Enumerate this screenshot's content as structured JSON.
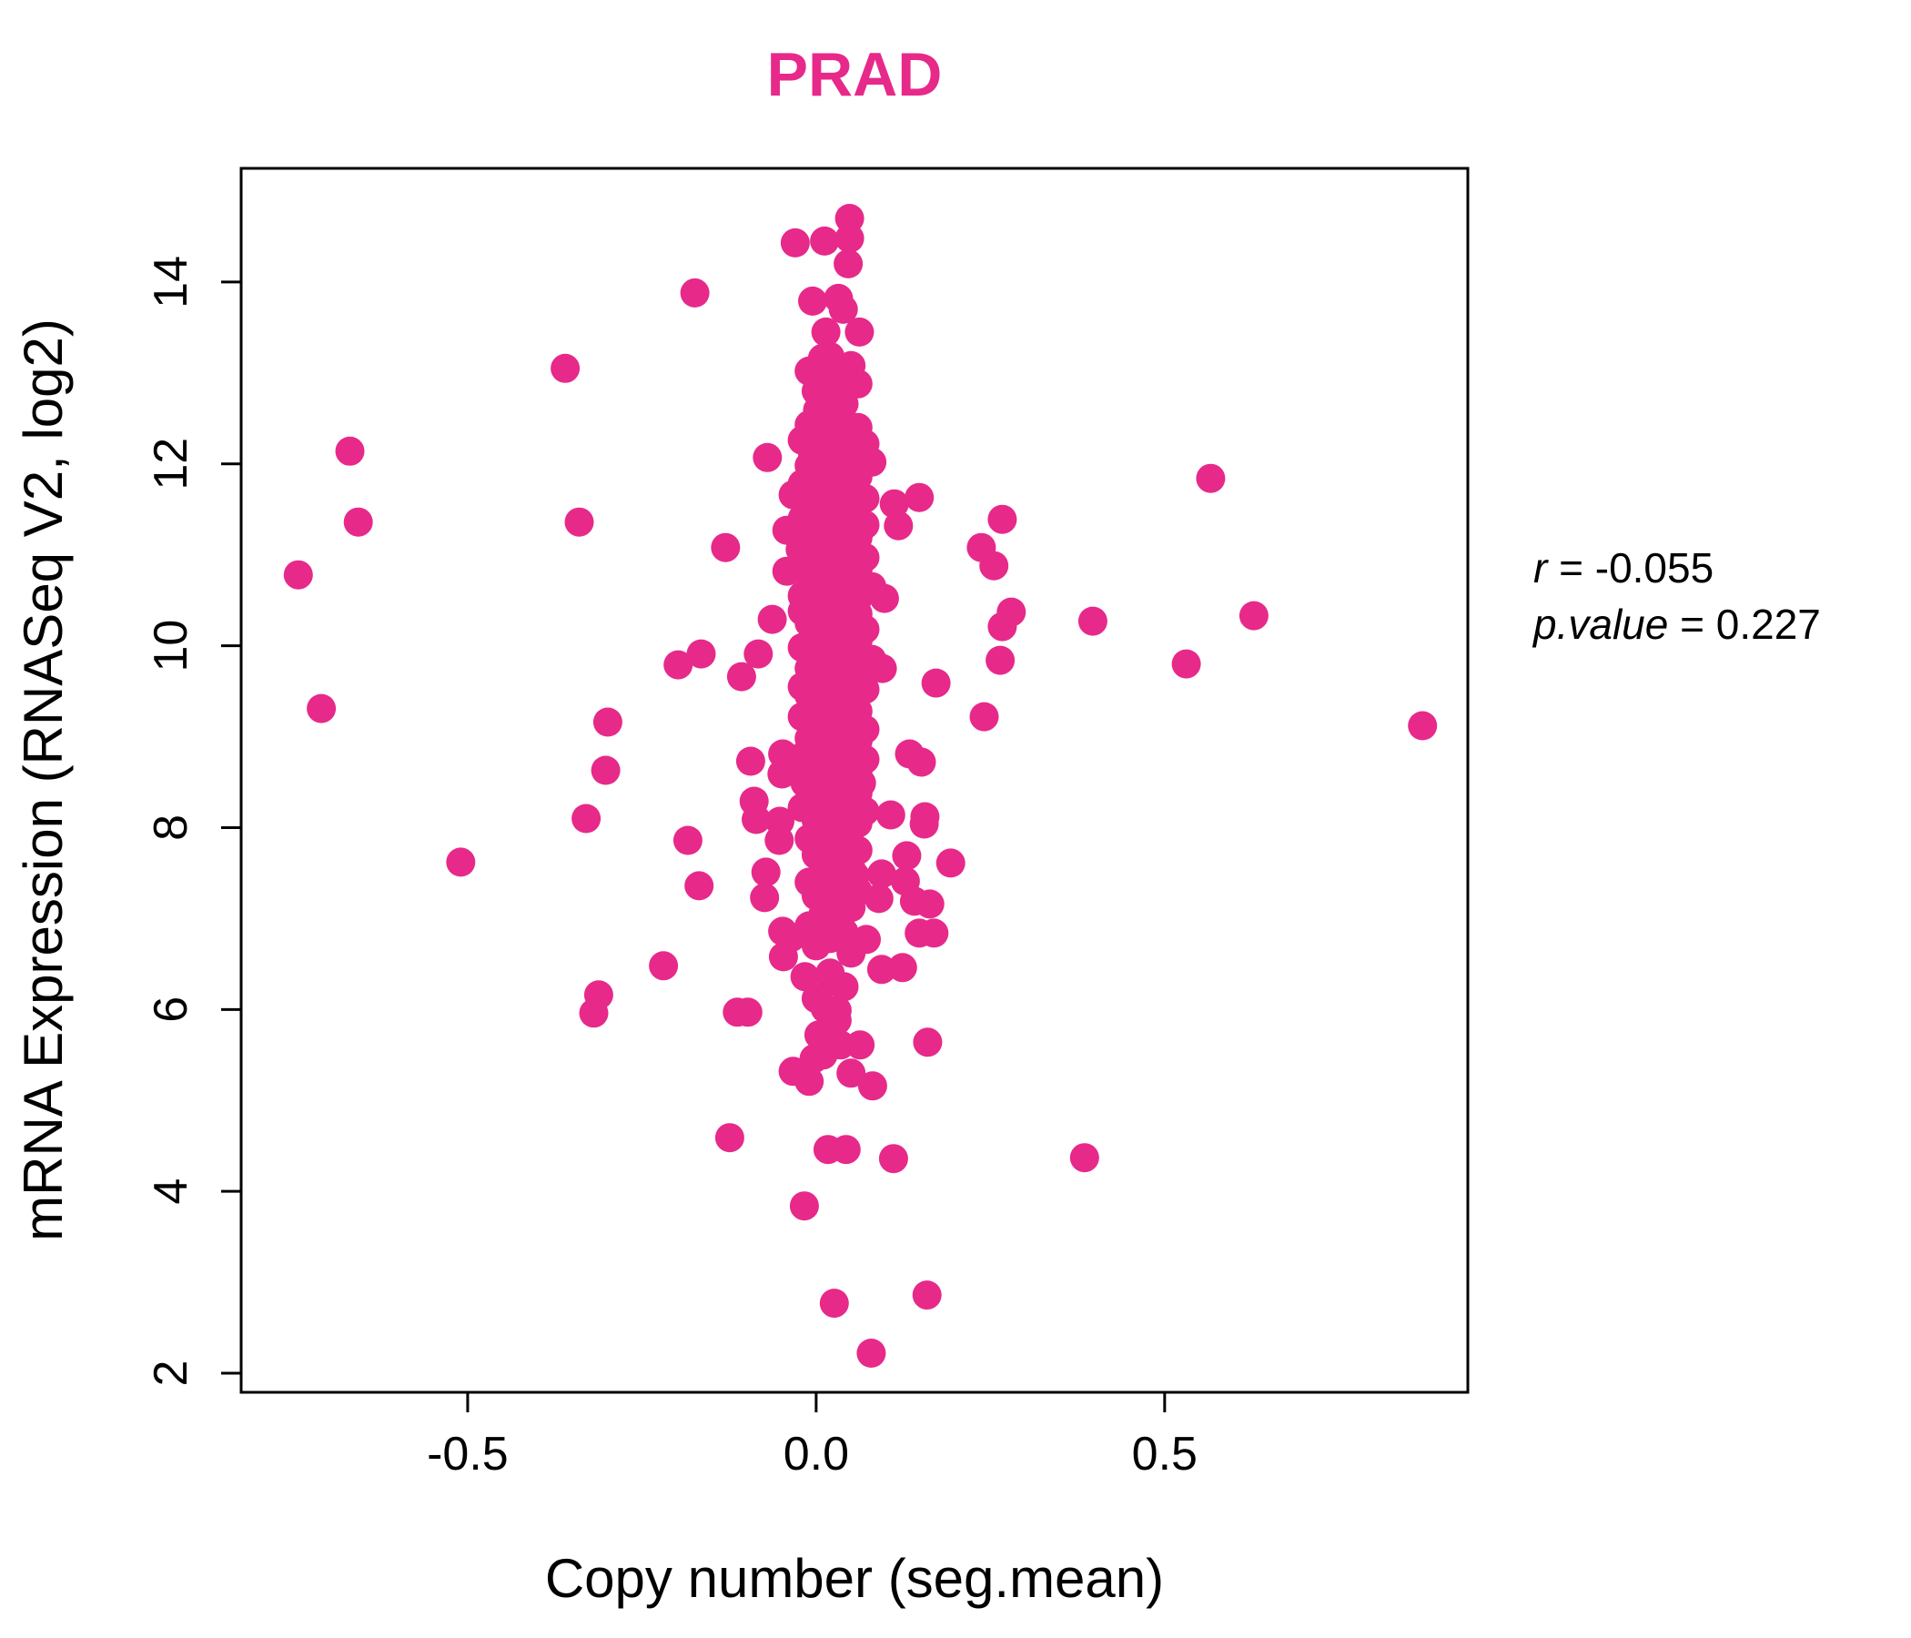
{
  "title": "PRAD",
  "colors": {
    "accent": "#E7298A",
    "point": "#E7298A",
    "axis": "#000000"
  },
  "axes": {
    "xlabel": "Copy number (seg.mean)",
    "ylabel": "mRNA Expression (RNASeq V2, log2)"
  },
  "annotation": {
    "r_label": "r",
    "r_value": " = -0.055",
    "p_label": "p.value",
    "p_value": " = 0.227"
  },
  "chart_data": {
    "type": "scatter",
    "title": "PRAD",
    "xlabel": "Copy number (seg.mean)",
    "ylabel": "mRNA Expression (RNASeq V2, log2)",
    "x_ticks": [
      -0.5,
      0.0,
      0.5
    ],
    "x_tick_labels": [
      "-0.5",
      "0.0",
      "0.5"
    ],
    "y_ticks": [
      2,
      4,
      6,
      8,
      10,
      12,
      14
    ],
    "y_tick_labels": [
      "2",
      "4",
      "6",
      "8",
      "10",
      "12",
      "14"
    ],
    "xlim": [
      -0.825,
      0.935
    ],
    "ylim": [
      1.79,
      15.25
    ],
    "grid": false,
    "legend": "none",
    "stats": {
      "r": -0.055,
      "p_value": 0.227
    },
    "points": [
      [
        -0.743,
        10.78
      ],
      [
        -0.71,
        9.31
      ],
      [
        -0.669,
        12.14
      ],
      [
        -0.657,
        11.36
      ],
      [
        -0.51,
        7.62
      ],
      [
        -0.36,
        13.05
      ],
      [
        -0.34,
        11.36
      ],
      [
        -0.33,
        8.1
      ],
      [
        -0.312,
        6.16
      ],
      [
        -0.302,
        8.63
      ],
      [
        -0.299,
        9.16
      ],
      [
        -0.319,
        5.96
      ],
      [
        -0.219,
        6.48
      ],
      [
        -0.198,
        9.79
      ],
      [
        -0.184,
        7.86
      ],
      [
        -0.174,
        13.88
      ],
      [
        -0.168,
        7.36
      ],
      [
        -0.165,
        9.91
      ],
      [
        -0.13,
        11.08
      ],
      [
        -0.124,
        4.59
      ],
      [
        -0.113,
        5.97
      ],
      [
        -0.107,
        9.66
      ],
      [
        -0.098,
        5.97
      ],
      [
        -0.094,
        8.73
      ],
      [
        -0.089,
        8.29
      ],
      [
        -0.086,
        8.09
      ],
      [
        -0.083,
        9.91
      ],
      [
        -0.074,
        7.23
      ],
      [
        -0.072,
        7.51
      ],
      [
        -0.07,
        12.07
      ],
      [
        -0.063,
        10.29
      ],
      [
        -0.053,
        7.86
      ],
      [
        -0.052,
        8.07
      ],
      [
        -0.049,
        8.59
      ],
      [
        -0.048,
        8.81
      ],
      [
        -0.048,
        6.86
      ],
      [
        -0.047,
        6.58
      ],
      [
        -0.042,
        11.27
      ],
      [
        -0.042,
        10.82
      ],
      [
        -0.036,
        6.79
      ],
      [
        -0.033,
        11.66
      ],
      [
        -0.033,
        5.32
      ],
      [
        -0.03,
        14.43
      ],
      [
        -0.023,
        11.06
      ],
      [
        -0.017,
        3.84
      ],
      [
        -0.016,
        8.49
      ],
      [
        -0.016,
        6.36
      ],
      [
        -0.01,
        5.21
      ],
      [
        -0.005,
        13.79
      ],
      [
        -0.005,
        12.11
      ],
      [
        -0.005,
        11.88
      ],
      [
        -0.005,
        11.63
      ],
      [
        -0.005,
        11.25
      ],
      [
        -0.003,
        7.84
      ],
      [
        -0.003,
        5.46
      ],
      [
        0.002,
        12.59
      ],
      [
        0.004,
        5.72
      ],
      [
        0.009,
        13.16
      ],
      [
        0.009,
        12.93
      ],
      [
        0.009,
        12.38
      ],
      [
        0.009,
        10.99
      ],
      [
        0.012,
        14.45
      ],
      [
        0.013,
        6.01
      ],
      [
        0.014,
        13.45
      ],
      [
        0.016,
        8.27
      ],
      [
        0.017,
        4.46
      ],
      [
        0.023,
        12.09
      ],
      [
        0.023,
        11.81
      ],
      [
        0.023,
        11.59
      ],
      [
        0.023,
        11.24
      ],
      [
        0.023,
        6.31
      ],
      [
        0.023,
        5.74
      ],
      [
        0.026,
        2.77
      ],
      [
        0.03,
        5.99
      ],
      [
        0.032,
        13.82
      ],
      [
        0.035,
        5.61
      ],
      [
        0.036,
        12.73
      ],
      [
        0.036,
        12.54
      ],
      [
        0.039,
        13.7
      ],
      [
        0.039,
        12.31
      ],
      [
        0.043,
        4.46
      ],
      [
        0.046,
        14.2
      ],
      [
        0.046,
        12.06
      ],
      [
        0.046,
        11.75
      ],
      [
        0.048,
        14.7
      ],
      [
        0.048,
        14.48
      ],
      [
        0.051,
        11.56
      ],
      [
        0.056,
        7.47
      ],
      [
        0.062,
        13.45
      ],
      [
        0.063,
        5.61
      ],
      [
        0.065,
        8.49
      ],
      [
        0.072,
        6.77
      ],
      [
        0.079,
        2.22
      ],
      [
        0.081,
        5.16
      ],
      [
        0.09,
        7.22
      ],
      [
        0.094,
        7.49
      ],
      [
        0.094,
        6.44
      ],
      [
        0.095,
        9.75
      ],
      [
        0.098,
        10.52
      ],
      [
        0.107,
        8.14
      ],
      [
        0.111,
        4.36
      ],
      [
        0.112,
        11.56
      ],
      [
        0.118,
        11.32
      ],
      [
        0.124,
        6.46
      ],
      [
        0.128,
        7.41
      ],
      [
        0.13,
        7.69
      ],
      [
        0.134,
        8.81
      ],
      [
        0.141,
        7.19
      ],
      [
        0.148,
        11.63
      ],
      [
        0.148,
        6.84
      ],
      [
        0.151,
        8.72
      ],
      [
        0.155,
        8.04
      ],
      [
        0.156,
        8.12
      ],
      [
        0.159,
        2.86
      ],
      [
        0.16,
        5.64
      ],
      [
        0.163,
        7.16
      ],
      [
        0.169,
        6.84
      ],
      [
        0.172,
        9.59
      ],
      [
        0.193,
        7.61
      ],
      [
        0.237,
        11.08
      ],
      [
        0.241,
        9.22
      ],
      [
        0.255,
        10.88
      ],
      [
        0.264,
        9.84
      ],
      [
        0.267,
        11.39
      ],
      [
        0.267,
        10.21
      ],
      [
        0.28,
        10.37
      ],
      [
        0.385,
        4.37
      ],
      [
        0.397,
        10.27
      ],
      [
        0.531,
        9.8
      ],
      [
        0.566,
        11.84
      ],
      [
        0.628,
        10.33
      ],
      [
        0.87,
        9.12
      ],
      [
        0.02,
        13.18
      ],
      [
        0.05,
        13.08
      ],
      [
        -0.01,
        13.02
      ],
      [
        0.03,
        12.95
      ],
      [
        0.06,
        12.88
      ],
      [
        0.0,
        12.8
      ],
      [
        0.04,
        12.66
      ],
      [
        0.01,
        12.55
      ],
      [
        0.03,
        12.48
      ],
      [
        -0.01,
        12.43
      ],
      [
        0.06,
        12.4
      ],
      [
        0.01,
        12.35
      ],
      [
        0.04,
        12.3
      ],
      [
        -0.02,
        12.26
      ],
      [
        0.07,
        12.22
      ],
      [
        0.02,
        12.18
      ],
      [
        0.05,
        12.15
      ],
      [
        0.0,
        12.1
      ],
      [
        0.03,
        12.05
      ],
      [
        0.08,
        12.02
      ],
      [
        -0.01,
        11.98
      ],
      [
        0.04,
        11.95
      ],
      [
        0.01,
        11.9
      ],
      [
        0.06,
        11.86
      ],
      [
        0.02,
        11.82
      ],
      [
        -0.02,
        11.78
      ],
      [
        0.05,
        11.74
      ],
      [
        0.0,
        11.7
      ],
      [
        0.03,
        11.66
      ],
      [
        0.07,
        11.62
      ],
      [
        0.01,
        11.58
      ],
      [
        0.04,
        11.54
      ],
      [
        0.02,
        11.5
      ],
      [
        0.0,
        11.46
      ],
      [
        0.05,
        11.43
      ],
      [
        -0.02,
        11.4
      ],
      [
        0.03,
        11.36
      ],
      [
        0.07,
        11.33
      ],
      [
        0.01,
        11.3
      ],
      [
        0.04,
        11.26
      ],
      [
        -0.01,
        11.22
      ],
      [
        0.06,
        11.19
      ],
      [
        0.02,
        11.16
      ],
      [
        0.0,
        11.12
      ],
      [
        0.05,
        11.08
      ],
      [
        0.03,
        11.04
      ],
      [
        -0.02,
        11.0
      ],
      [
        0.07,
        10.97
      ],
      [
        0.01,
        10.94
      ],
      [
        0.04,
        10.9
      ],
      [
        0.0,
        10.86
      ],
      [
        0.06,
        10.83
      ],
      [
        0.02,
        10.8
      ],
      [
        -0.01,
        10.76
      ],
      [
        0.05,
        10.72
      ],
      [
        0.03,
        10.68
      ],
      [
        0.08,
        10.65
      ],
      [
        0.0,
        10.62
      ],
      [
        0.04,
        10.58
      ],
      [
        -0.02,
        10.55
      ],
      [
        0.06,
        10.52
      ],
      [
        0.01,
        10.6
      ],
      [
        0.02,
        10.48
      ],
      [
        0.05,
        10.55
      ],
      [
        0.03,
        10.72
      ],
      [
        0.01,
        11.05
      ],
      [
        0.04,
        11.15
      ],
      [
        0.02,
        10.92
      ],
      [
        0.0,
        10.45
      ],
      [
        0.04,
        10.42
      ],
      [
        -0.02,
        10.38
      ],
      [
        0.06,
        10.35
      ],
      [
        0.02,
        10.32
      ],
      [
        0.05,
        10.28
      ],
      [
        -0.01,
        10.25
      ],
      [
        0.03,
        10.22
      ],
      [
        0.07,
        10.18
      ],
      [
        0.01,
        10.15
      ],
      [
        0.04,
        10.12
      ],
      [
        0.0,
        10.08
      ],
      [
        0.06,
        10.05
      ],
      [
        0.02,
        10.02
      ],
      [
        -0.02,
        9.98
      ],
      [
        0.05,
        9.95
      ],
      [
        0.01,
        9.92
      ],
      [
        0.03,
        9.88
      ],
      [
        0.08,
        9.85
      ],
      [
        0.0,
        9.82
      ],
      [
        0.04,
        9.78
      ],
      [
        -0.01,
        9.75
      ],
      [
        0.06,
        9.72
      ],
      [
        0.02,
        9.68
      ],
      [
        0.05,
        9.65
      ],
      [
        0.01,
        9.62
      ],
      [
        0.03,
        9.58
      ],
      [
        -0.02,
        9.55
      ],
      [
        0.07,
        9.52
      ],
      [
        0.0,
        9.7
      ],
      [
        0.02,
        9.9
      ],
      [
        0.04,
        10.0
      ],
      [
        0.01,
        10.3
      ],
      [
        0.03,
        10.1
      ],
      [
        0.05,
        9.6
      ],
      [
        0.02,
        9.48
      ],
      [
        -0.01,
        9.45
      ],
      [
        0.05,
        9.42
      ],
      [
        0.01,
        9.38
      ],
      [
        0.04,
        9.35
      ],
      [
        0.0,
        9.32
      ],
      [
        0.06,
        9.28
      ],
      [
        0.02,
        9.25
      ],
      [
        -0.02,
        9.22
      ],
      [
        0.05,
        9.18
      ],
      [
        0.01,
        9.15
      ],
      [
        0.03,
        9.12
      ],
      [
        0.07,
        9.08
      ],
      [
        0.0,
        9.05
      ],
      [
        0.04,
        9.02
      ],
      [
        -0.01,
        8.98
      ],
      [
        0.06,
        8.95
      ],
      [
        0.02,
        8.92
      ],
      [
        0.05,
        8.88
      ],
      [
        0.01,
        8.85
      ],
      [
        0.03,
        8.82
      ],
      [
        -0.02,
        8.78
      ],
      [
        0.07,
        8.75
      ],
      [
        0.0,
        8.72
      ],
      [
        0.04,
        8.68
      ],
      [
        0.02,
        8.65
      ],
      [
        0.06,
        8.62
      ],
      [
        -0.01,
        8.58
      ],
      [
        0.03,
        8.55
      ],
      [
        0.05,
        8.52
      ],
      [
        0.01,
        8.9
      ],
      [
        0.02,
        9.0
      ],
      [
        0.04,
        9.2
      ],
      [
        0.0,
        8.6
      ],
      [
        0.03,
        9.3
      ],
      [
        0.01,
        8.48
      ],
      [
        0.04,
        8.45
      ],
      [
        -0.01,
        8.42
      ],
      [
        0.06,
        8.38
      ],
      [
        0.02,
        8.35
      ],
      [
        0.0,
        8.32
      ],
      [
        0.05,
        8.28
      ],
      [
        0.03,
        8.25
      ],
      [
        -0.02,
        8.22
      ],
      [
        0.07,
        8.18
      ],
      [
        0.01,
        8.15
      ],
      [
        0.04,
        8.12
      ],
      [
        0.0,
        8.08
      ],
      [
        0.06,
        8.05
      ],
      [
        0.02,
        8.02
      ],
      [
        0.05,
        7.98
      ],
      [
        0.01,
        7.95
      ],
      [
        0.03,
        7.92
      ],
      [
        -0.01,
        7.88
      ],
      [
        0.04,
        7.85
      ],
      [
        0.02,
        7.8
      ],
      [
        0.06,
        7.75
      ],
      [
        0.0,
        7.7
      ],
      [
        0.03,
        7.62
      ],
      [
        0.05,
        7.55
      ],
      [
        0.01,
        7.48
      ],
      [
        0.04,
        7.44
      ],
      [
        -0.01,
        7.4
      ],
      [
        0.03,
        7.35
      ],
      [
        0.06,
        7.3
      ],
      [
        0.0,
        7.25
      ],
      [
        0.02,
        7.18
      ],
      [
        0.05,
        7.12
      ],
      [
        0.01,
        7.05
      ],
      [
        0.03,
        6.98
      ],
      [
        -0.01,
        6.92
      ],
      [
        0.04,
        6.85
      ],
      [
        0.02,
        6.78
      ],
      [
        0.0,
        6.7
      ],
      [
        0.05,
        6.62
      ],
      [
        0.02,
        6.4
      ],
      [
        0.04,
        6.25
      ],
      [
        0.0,
        6.12
      ],
      [
        0.03,
        5.88
      ],
      [
        0.01,
        5.5
      ],
      [
        0.05,
        5.3
      ]
    ]
  }
}
